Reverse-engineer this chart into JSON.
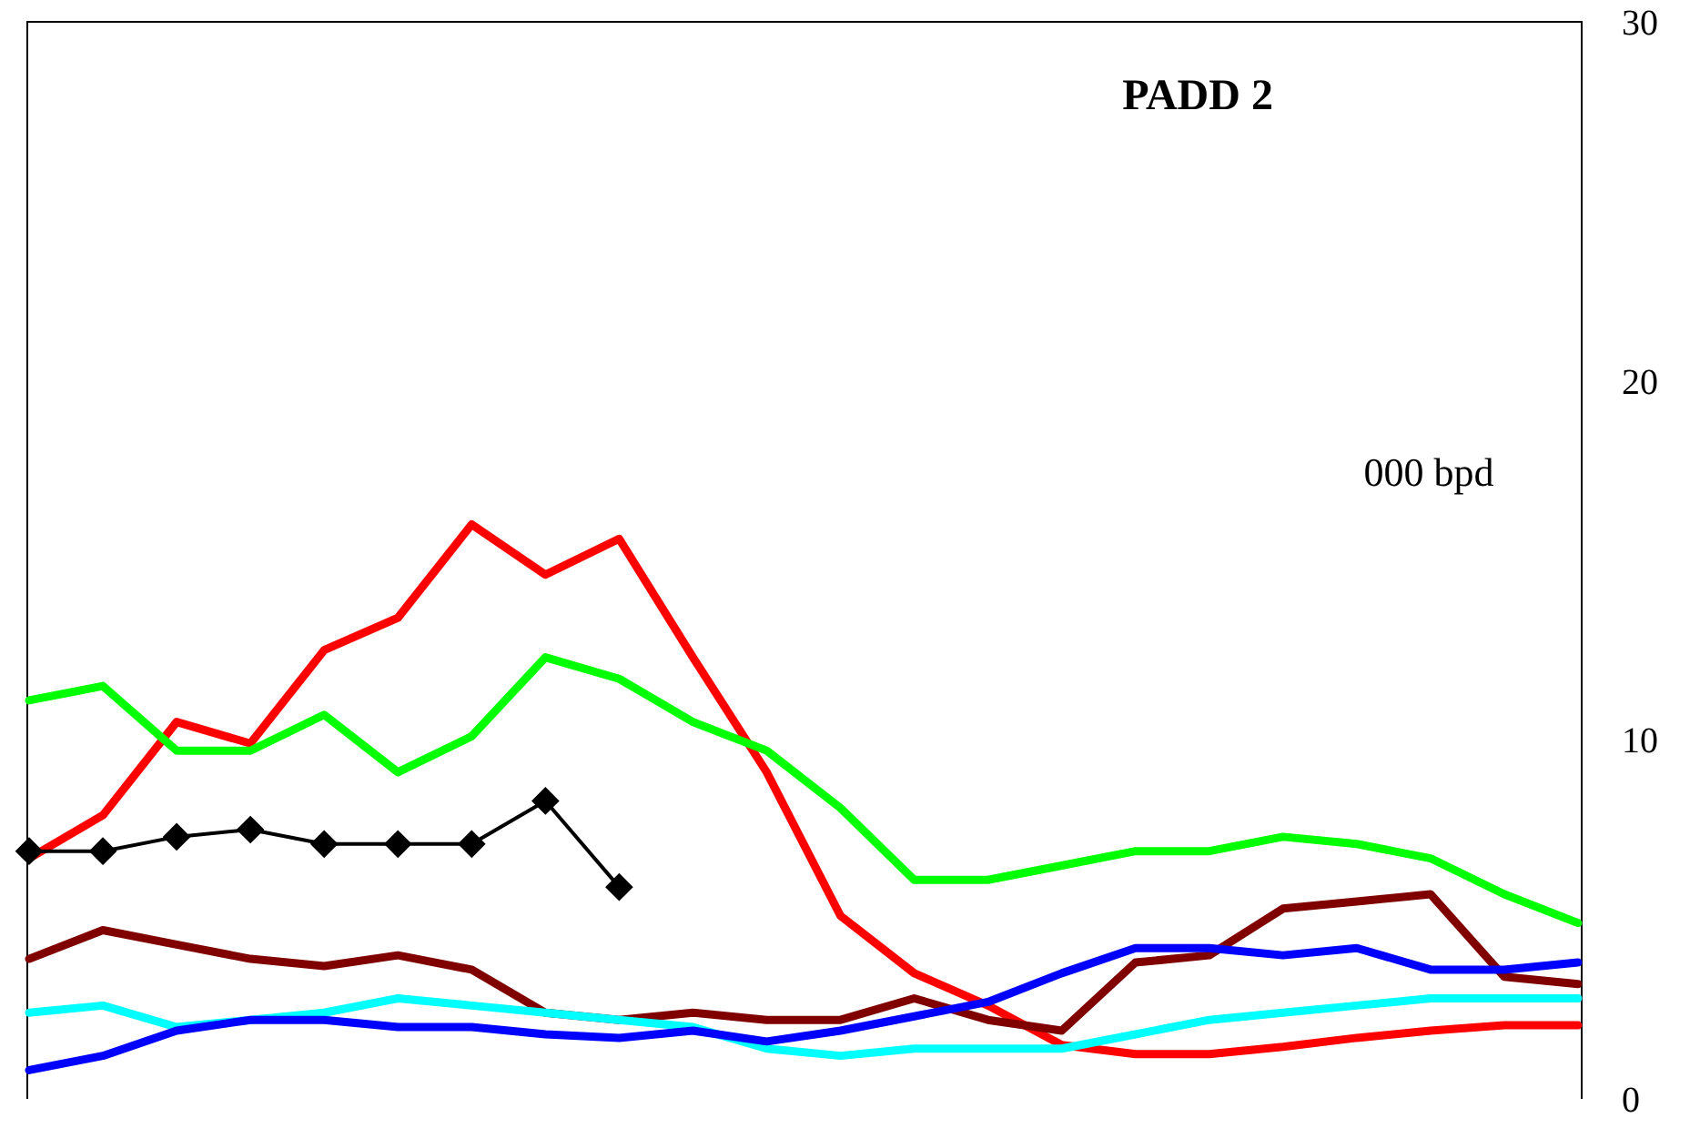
{
  "chart_data": {
    "type": "line",
    "title": "PADD 2",
    "ylabel": "000 bpd",
    "categories": [
      null,
      null,
      null,
      null,
      null,
      null,
      null,
      null,
      null,
      null,
      null,
      null,
      null,
      null,
      null,
      null,
      null,
      null,
      null,
      null,
      null,
      null
    ],
    "series": [
      {
        "color": "#ff0000",
        "values": [
          6.7,
          7.9,
          10.5,
          9.9,
          12.5,
          13.4,
          16.0,
          14.6,
          15.6,
          12.3,
          9.1,
          5.1,
          3.5,
          2.6,
          1.5,
          1.25,
          1.25,
          1.45,
          1.7,
          1.9,
          2.05,
          2.05
        ]
      },
      {
        "color": "#00ff00",
        "values": [
          11.1,
          11.5,
          9.7,
          9.7,
          10.7,
          9.1,
          10.1,
          12.3,
          11.7,
          10.5,
          9.7,
          8.1,
          6.1,
          6.1,
          6.5,
          6.9,
          6.9,
          7.3,
          7.1,
          6.7,
          5.7,
          4.9
        ]
      },
      {
        "color": "#800000",
        "values": [
          3.9,
          4.7,
          4.3,
          3.9,
          3.7,
          4.0,
          3.6,
          2.4,
          2.2,
          2.4,
          2.2,
          2.2,
          2.8,
          2.2,
          1.9,
          3.8,
          4.0,
          5.3,
          5.5,
          5.7,
          3.4,
          3.2
        ]
      },
      {
        "color": "#00ffff",
        "values": [
          2.4,
          2.6,
          2.0,
          2.2,
          2.4,
          2.8,
          2.6,
          2.4,
          2.2,
          2.0,
          1.4,
          1.2,
          1.4,
          1.4,
          1.4,
          1.8,
          2.2,
          2.4,
          2.6,
          2.8,
          2.8,
          2.8
        ]
      },
      {
        "color": "#0000ff",
        "values": [
          0.8,
          1.2,
          1.9,
          2.2,
          2.2,
          2.0,
          2.0,
          1.8,
          1.7,
          1.9,
          1.6,
          1.9,
          2.3,
          2.7,
          3.5,
          4.2,
          4.2,
          4.0,
          4.2,
          3.6,
          3.6,
          3.8
        ]
      },
      {
        "color": "#000000",
        "marker": "diamond",
        "values": [
          6.9,
          6.9,
          7.3,
          7.5,
          7.1,
          7.1,
          7.1,
          8.3,
          5.9,
          null,
          null,
          null,
          null,
          null,
          null,
          null,
          null,
          null,
          null,
          null,
          null,
          null
        ]
      }
    ],
    "ylim": [
      0,
      30
    ],
    "yticks": [
      0,
      10,
      20,
      30
    ],
    "tick_labels": "y",
    "grid": false,
    "marker": "none"
  }
}
